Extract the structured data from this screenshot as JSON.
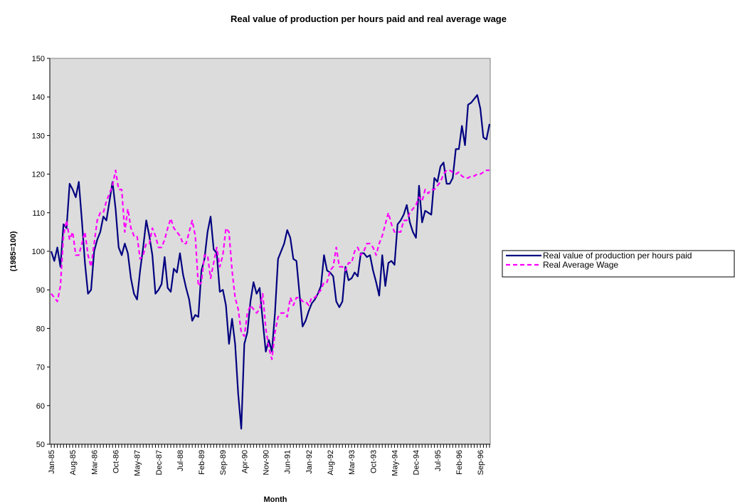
{
  "chart_data": {
    "type": "line",
    "title": "Real value of production per hours paid and real average wage",
    "x_label": "Month",
    "y_label": "(1985=100)",
    "categories": [
      "Jan-85",
      null,
      null,
      null,
      null,
      null,
      null,
      "Aug-85",
      null,
      null,
      null,
      null,
      null,
      null,
      "Mar-86",
      null,
      null,
      null,
      null,
      null,
      null,
      "Oct-86",
      null,
      null,
      null,
      null,
      null,
      null,
      "May-87",
      null,
      null,
      null,
      null,
      null,
      null,
      "Dec-87",
      null,
      null,
      null,
      null,
      null,
      null,
      "Jul-88",
      null,
      null,
      null,
      null,
      null,
      null,
      "Feb-89",
      null,
      null,
      null,
      null,
      null,
      null,
      "Sep-89",
      null,
      null,
      null,
      null,
      null,
      null,
      "Apr-90",
      null,
      null,
      null,
      null,
      null,
      null,
      "Nov-90",
      null,
      null,
      null,
      null,
      null,
      null,
      "Jun-91",
      null,
      null,
      null,
      null,
      null,
      null,
      "Jan-92",
      null,
      null,
      null,
      null,
      null,
      null,
      "Aug-92",
      null,
      null,
      null,
      null,
      null,
      null,
      "Mar-93",
      null,
      null,
      null,
      null,
      null,
      null,
      "Oct-93",
      null,
      null,
      null,
      null,
      null,
      null,
      "May-94",
      null,
      null,
      null,
      null,
      null,
      null,
      "Dec-94",
      null,
      null,
      null,
      null,
      null,
      null,
      "Jul-95",
      null,
      null,
      null,
      null,
      null,
      null,
      "Feb-96",
      null,
      null,
      null,
      null,
      null,
      null,
      "Sep-96",
      null,
      null,
      null
    ],
    "series": [
      {
        "name": "Real value of production per hours paid",
        "color": "#000080",
        "dashed": false,
        "values": [
          100,
          97.5,
          101,
          96,
          107,
          106,
          117.5,
          116,
          114,
          118,
          108,
          97,
          89,
          90,
          100,
          103,
          105,
          109,
          108,
          113,
          118,
          111,
          101,
          99,
          102,
          99.5,
          93,
          89,
          87.5,
          95,
          101,
          108,
          104,
          99,
          89,
          90,
          91.5,
          98.5,
          90.5,
          89.5,
          95.5,
          94.5,
          99.5,
          94,
          90.5,
          87.5,
          82,
          83.5,
          83,
          95,
          98,
          105,
          109,
          100.5,
          99.5,
          89.5,
          90,
          86,
          76,
          82.5,
          76,
          63,
          54,
          76,
          79,
          87,
          92,
          89,
          90.5,
          82,
          74,
          77,
          74,
          84,
          98,
          100,
          102,
          105.5,
          103.5,
          98,
          97.5,
          89,
          80.5,
          82,
          84.5,
          86.5,
          87.5,
          89,
          91,
          99,
          95,
          94.5,
          93.5,
          87,
          85.5,
          87,
          96,
          92.5,
          93,
          94.5,
          93.5,
          99.5,
          99.5,
          98.5,
          99,
          95,
          92,
          88.5,
          99,
          91,
          97,
          97.5,
          96.5,
          107,
          108,
          109.5,
          112,
          107.5,
          105,
          103.5,
          117,
          107.5,
          110.5,
          110,
          109.5,
          119,
          118,
          122,
          123,
          117.5,
          117.5,
          119,
          126.5,
          126.5,
          132.5,
          127.5,
          138,
          138.5,
          139.5,
          140.5,
          137,
          129.5,
          129,
          133
        ]
      },
      {
        "name": "Real Average Wage",
        "color": "#ff00ff",
        "dashed": true,
        "values": [
          89,
          88,
          87,
          91,
          104,
          108,
          103,
          105,
          99,
          99,
          102,
          105,
          99,
          96,
          102,
          108,
          110,
          110,
          113,
          115,
          117,
          121,
          116,
          116,
          105,
          111,
          106,
          104,
          104,
          98,
          99,
          102,
          102,
          106,
          104,
          101,
          101,
          103,
          106,
          108.5,
          106,
          105,
          104,
          102,
          102,
          105,
          108,
          104,
          91,
          92,
          99,
          99,
          93,
          97,
          101,
          96,
          99,
          106,
          105,
          95,
          88,
          85,
          79,
          78,
          84,
          86,
          85,
          84,
          85,
          89,
          80,
          75,
          72,
          79,
          83,
          84,
          84,
          83,
          88,
          86,
          88,
          88,
          87,
          87,
          86,
          88,
          88,
          89,
          90,
          92,
          92,
          95,
          96,
          101,
          96,
          96,
          95,
          97,
          97,
          100,
          101,
          99,
          100,
          102,
          102,
          101,
          99,
          102,
          104,
          107,
          110,
          107,
          105,
          105,
          105,
          108,
          108,
          110,
          111,
          112,
          114,
          113,
          116,
          115,
          116,
          116,
          117,
          118,
          120,
          121,
          121,
          120.5,
          120,
          120.5,
          119.5,
          119,
          119,
          119.5,
          119.5,
          120,
          120,
          120.5,
          121,
          121
        ]
      }
    ],
    "ylim": [
      50,
      150
    ],
    "yticks": [
      50,
      60,
      70,
      80,
      90,
      100,
      110,
      120,
      130,
      140,
      150
    ],
    "grid": false,
    "legend": "right",
    "background": "#dcdcdc"
  }
}
